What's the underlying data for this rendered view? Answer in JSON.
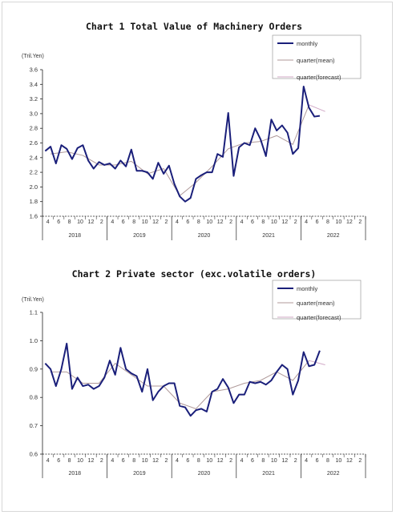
{
  "chart_data": [
    {
      "type": "line",
      "title": "Chart 1 Total Value of Machinery Orders",
      "unit": "(Tril.Yen)",
      "ylim": [
        1.6,
        3.6
      ],
      "yticks": [
        "1.6",
        "1.8",
        "2.0",
        "2.2",
        "2.4",
        "2.6",
        "2.8",
        "3.0",
        "3.2",
        "3.4",
        "3.6"
      ],
      "month_ticks": [
        "4",
        "6",
        "8",
        "10",
        "12",
        "2",
        "4",
        "6",
        "8",
        "10",
        "12",
        "2",
        "4",
        "6",
        "8",
        "10",
        "12",
        "2",
        "4",
        "6",
        "8",
        "10",
        "12",
        "2",
        "4",
        "6",
        "8",
        "10",
        "12",
        "2"
      ],
      "years": [
        "2018",
        "2019",
        "2020",
        "2021",
        "2022"
      ],
      "legend": [
        "monthly",
        "quarter(mean)",
        "quarter(forecast)"
      ],
      "series": [
        {
          "name": "monthly",
          "values": [
            2.49,
            2.55,
            2.32,
            2.57,
            2.52,
            2.38,
            2.53,
            2.57,
            2.36,
            2.25,
            2.34,
            2.3,
            2.32,
            2.25,
            2.36,
            2.28,
            2.51,
            2.22,
            2.22,
            2.2,
            2.11,
            2.33,
            2.18,
            2.29,
            2.04,
            1.87,
            1.8,
            1.85,
            2.11,
            2.16,
            2.2,
            2.2,
            2.45,
            2.41,
            3.01,
            2.15,
            2.54,
            2.6,
            2.57,
            2.8,
            2.65,
            2.42,
            2.92,
            2.77,
            2.84,
            2.74,
            2.45,
            2.53,
            3.37,
            3.08,
            2.96,
            2.97
          ]
        },
        {
          "name": "quarter(mean)",
          "x": [
            1,
            4,
            7,
            10,
            13,
            16,
            19,
            22,
            25,
            28,
            31,
            34,
            37,
            40,
            43,
            46,
            49
          ],
          "values": [
            2.45,
            2.48,
            2.43,
            2.3,
            2.3,
            2.35,
            2.18,
            2.25,
            1.88,
            2.06,
            2.28,
            2.52,
            2.6,
            2.62,
            2.7,
            2.58,
            3.12
          ]
        },
        {
          "name": "quarter(forecast)",
          "x": [
            49,
            52
          ],
          "values": [
            3.12,
            3.03
          ]
        }
      ]
    },
    {
      "type": "line",
      "title": "Chart 2 Private sector (exc.volatile orders)",
      "unit": "(Tril.Yen)",
      "ylim": [
        0.6,
        1.1
      ],
      "yticks": [
        "0.6",
        "0.7",
        "0.8",
        "0.9",
        "1.0",
        "1.1"
      ],
      "month_ticks": [
        "4",
        "6",
        "8",
        "10",
        "12",
        "2",
        "4",
        "6",
        "8",
        "10",
        "12",
        "2",
        "4",
        "6",
        "8",
        "10",
        "12",
        "2",
        "4",
        "6",
        "8",
        "10",
        "12",
        "2",
        "4",
        "6",
        "8",
        "10",
        "12",
        "2"
      ],
      "years": [
        "2018",
        "2019",
        "2020",
        "2021",
        "2022"
      ],
      "legend": [
        "monthly",
        "quarter(mean)",
        "quarter(forecast)"
      ],
      "series": [
        {
          "name": "monthly",
          "values": [
            0.92,
            0.9,
            0.84,
            0.9,
            0.99,
            0.83,
            0.87,
            0.84,
            0.845,
            0.83,
            0.84,
            0.87,
            0.93,
            0.88,
            0.975,
            0.9,
            0.885,
            0.875,
            0.82,
            0.9,
            0.79,
            0.82,
            0.84,
            0.85,
            0.85,
            0.77,
            0.765,
            0.735,
            0.755,
            0.76,
            0.75,
            0.82,
            0.83,
            0.865,
            0.835,
            0.78,
            0.81,
            0.81,
            0.855,
            0.85,
            0.855,
            0.845,
            0.86,
            0.89,
            0.915,
            0.9,
            0.81,
            0.86,
            0.96,
            0.91,
            0.915,
            0.965
          ]
        },
        {
          "name": "quarter(mean)",
          "x": [
            1,
            4,
            7,
            10,
            13,
            16,
            19,
            22,
            25,
            28,
            31,
            34,
            37,
            40,
            43,
            46,
            49
          ],
          "values": [
            0.89,
            0.89,
            0.85,
            0.85,
            0.92,
            0.88,
            0.84,
            0.84,
            0.78,
            0.76,
            0.82,
            0.83,
            0.85,
            0.86,
            0.89,
            0.86,
            0.93
          ]
        },
        {
          "name": "quarter(forecast)",
          "x": [
            49,
            52
          ],
          "values": [
            0.93,
            0.915
          ]
        }
      ]
    }
  ],
  "colors": {
    "monthly": "#1a1f7a",
    "mean": "#b09a9a",
    "forecast": "#d0a8c6",
    "axis": "#222222"
  }
}
